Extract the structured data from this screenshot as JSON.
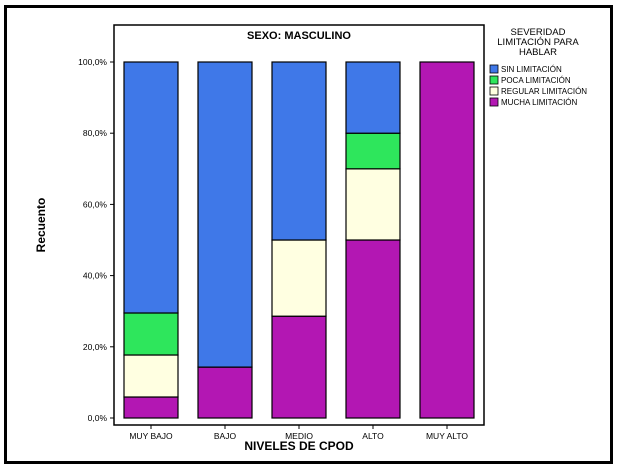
{
  "chart_data": {
    "type": "bar",
    "stacked": true,
    "title": "SEXO: MASCULINO",
    "xlabel": "NIVELES DE CPOD",
    "ylabel": "Recuento",
    "ylim": [
      0,
      100
    ],
    "y_tick_values": [
      0,
      20,
      40,
      60,
      80,
      100
    ],
    "y_tick_labels": [
      "0,0%",
      "20,0%",
      "40,0%",
      "60,0%",
      "80,0%",
      "100,0%"
    ],
    "categories": [
      "MUY BAJO",
      "BAJO",
      "MEDIO",
      "ALTO",
      "MUY ALTO"
    ],
    "legend_title": "SEVERIDAD LIMITACIÓN PARA HABLAR",
    "legend_title_lines": [
      "SEVERIDAD",
      "LIMITACIÓN PARA",
      "HABLAR"
    ],
    "legend_position": "right",
    "grid": false,
    "series": [
      {
        "name": "MUCHA LIMITACIÓN",
        "color": "#b317b3",
        "values": [
          5.9,
          14.3,
          28.6,
          50,
          100
        ]
      },
      {
        "name": "REGULAR LIMITACIÓN",
        "color": "#ffffe1",
        "values": [
          11.8,
          0,
          21.4,
          20,
          0
        ]
      },
      {
        "name": "POCA LIMITACIÓN",
        "color": "#2ee65c",
        "values": [
          11.8,
          0,
          0,
          10,
          0
        ]
      },
      {
        "name": "SIN LIMITACIÓN",
        "color": "#3f78e8",
        "values": [
          70.5,
          85.7,
          50,
          20,
          0
        ]
      }
    ],
    "legend_order": [
      "SIN LIMITACIÓN",
      "POCA LIMITACIÓN",
      "REGULAR LIMITACIÓN",
      "MUCHA LIMITACIÓN"
    ]
  }
}
